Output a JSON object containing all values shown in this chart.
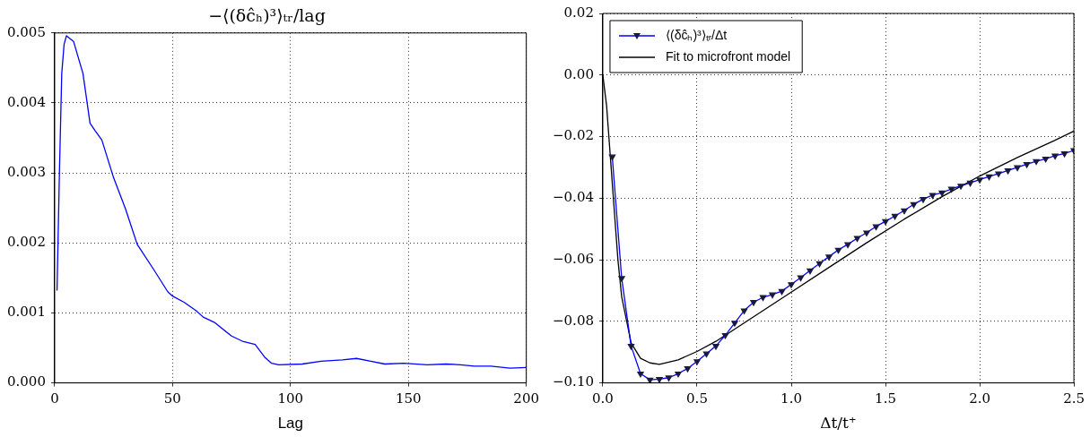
{
  "chart_data": [
    {
      "type": "line",
      "title": "−⟨(δĉₕ)³⟩ₜᵣ/lag",
      "xlabel": "Lag",
      "xlim": [
        0,
        200
      ],
      "xticks": [
        0,
        50,
        100,
        150,
        200
      ],
      "ylim": [
        0,
        0.005
      ],
      "yticks": [
        {
          "value": 0,
          "label": "0.000"
        },
        {
          "value": 0.001,
          "label": "0.001"
        },
        {
          "value": 0.002,
          "label": "0.002"
        },
        {
          "value": 0.003,
          "label": "0.003"
        },
        {
          "value": 0.004,
          "label": "0.004"
        },
        {
          "value": 0.005,
          "label": "0.005"
        }
      ],
      "grid": true,
      "legend": false,
      "line_style": "solid",
      "series": [
        {
          "color": "#0000ff",
          "x": [
            1,
            2,
            3,
            4,
            5,
            8,
            12,
            15,
            17,
            20,
            25,
            30,
            35,
            42,
            48,
            50,
            55,
            60,
            63,
            68,
            75,
            80,
            85,
            89,
            92,
            95,
            105,
            113,
            122,
            128,
            134,
            140,
            148,
            158,
            166,
            172,
            178,
            185,
            193,
            200
          ],
          "values": [
            0.00132,
            0.00298,
            0.00442,
            0.00484,
            0.00496,
            0.00488,
            0.00442,
            0.00371,
            0.00361,
            0.00347,
            0.00293,
            0.00249,
            0.00198,
            0.00162,
            0.0013,
            0.00124,
            0.00115,
            0.00103,
            0.00094,
            0.00086,
            0.00067,
            0.00059,
            0.00055,
            0.00037,
            0.00028,
            0.00026,
            0.00027,
            0.00031,
            0.00033,
            0.00035,
            0.00031,
            0.00027,
            0.00028,
            0.00026,
            0.00027,
            0.00026,
            0.00024,
            0.00024,
            0.00021,
            0.00022
          ]
        }
      ]
    },
    {
      "type": "line",
      "xlabel": "Δt/t⁺",
      "xlim": [
        0,
        2.5
      ],
      "xticks": [
        {
          "value": 0,
          "label": "0.0"
        },
        {
          "value": 0.5,
          "label": "0.5"
        },
        {
          "value": 1,
          "label": "1.0"
        },
        {
          "value": 1.5,
          "label": "1.5"
        },
        {
          "value": 2,
          "label": "2.0"
        },
        {
          "value": 2.5,
          "label": "2.5"
        }
      ],
      "ylim": [
        -0.1,
        0.02
      ],
      "yticks": [
        {
          "value": -0.1,
          "label": "−0.10"
        },
        {
          "value": -0.08,
          "label": "−0.08"
        },
        {
          "value": -0.06,
          "label": "−0.06"
        },
        {
          "value": -0.04,
          "label": "−0.04"
        },
        {
          "value": -0.02,
          "label": "−0.02"
        },
        {
          "value": 0,
          "label": "0.00"
        },
        {
          "value": 0.02,
          "label": "0.02"
        }
      ],
      "grid": true,
      "legend": "top left",
      "line_style": "solid",
      "series": [
        {
          "name": "⟨(δĉₕ)³⟩ₜᵣ/Δt",
          "color": "#0000ff",
          "marker": "triangle",
          "x": [
            0.05,
            0.1,
            0.15,
            0.2,
            0.25,
            0.3,
            0.35,
            0.4,
            0.45,
            0.5,
            0.55,
            0.6,
            0.65,
            0.7,
            0.75,
            0.8,
            0.85,
            0.9,
            0.95,
            1.0,
            1.05,
            1.1,
            1.15,
            1.2,
            1.25,
            1.3,
            1.35,
            1.4,
            1.45,
            1.5,
            1.55,
            1.6,
            1.65,
            1.7,
            1.75,
            1.8,
            1.85,
            1.9,
            1.95,
            2.0,
            2.05,
            2.1,
            2.15,
            2.2,
            2.25,
            2.3,
            2.35,
            2.4,
            2.45,
            2.5
          ],
          "values": [
            -0.0265,
            -0.066,
            -0.088,
            -0.097,
            -0.099,
            -0.0988,
            -0.0983,
            -0.097,
            -0.0953,
            -0.093,
            -0.0905,
            -0.088,
            -0.0845,
            -0.0805,
            -0.0765,
            -0.0738,
            -0.0722,
            -0.0713,
            -0.0702,
            -0.068,
            -0.0658,
            -0.0635,
            -0.0612,
            -0.059,
            -0.0568,
            -0.055,
            -0.053,
            -0.0512,
            -0.0492,
            -0.0475,
            -0.0458,
            -0.044,
            -0.042,
            -0.0403,
            -0.039,
            -0.0382,
            -0.037,
            -0.036,
            -0.035,
            -0.034,
            -0.033,
            -0.032,
            -0.031,
            -0.03,
            -0.029,
            -0.028,
            -0.0272,
            -0.0262,
            -0.0255,
            -0.0245
          ]
        },
        {
          "name": "Fit to microfront model",
          "color": "#000000",
          "marker": "none",
          "x": [
            0,
            0.02,
            0.05,
            0.08,
            0.1,
            0.15,
            0.2,
            0.25,
            0.3,
            0.4,
            0.5,
            0.6,
            0.7,
            0.8,
            1.0,
            1.2,
            1.4,
            1.6,
            1.8,
            2.0,
            2.2,
            2.4,
            2.5
          ],
          "values": [
            0,
            -0.01,
            -0.035,
            -0.06,
            -0.072,
            -0.087,
            -0.092,
            -0.0935,
            -0.094,
            -0.0925,
            -0.0898,
            -0.0865,
            -0.0825,
            -0.0785,
            -0.0705,
            -0.0625,
            -0.0545,
            -0.0468,
            -0.0395,
            -0.0328,
            -0.0268,
            -0.0212,
            -0.0182
          ]
        }
      ]
    }
  ]
}
